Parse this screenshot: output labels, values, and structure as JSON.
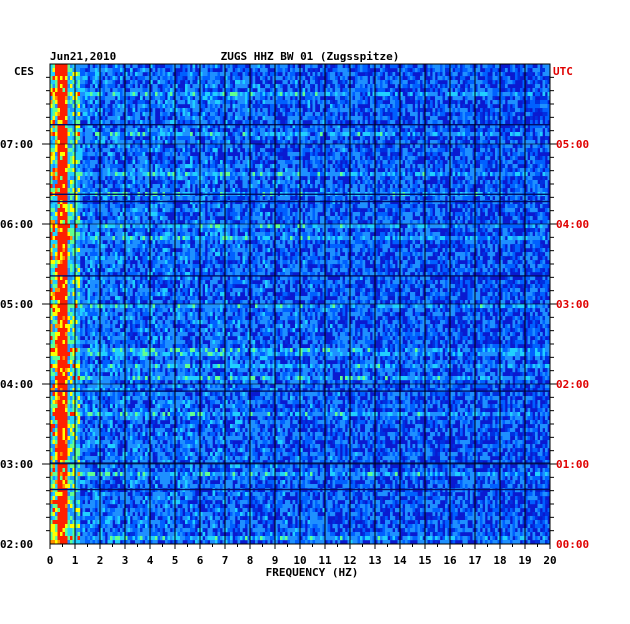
{
  "chart_data": {
    "type": "heatmap",
    "title_left": "Jun21,2010",
    "title_center": "ZUGS HHZ BW 01 (Zugsspitze)",
    "left_zone": "CES",
    "right_zone": "UTC",
    "xlabel": "FREQUENCY (HZ)",
    "xlim": [
      0,
      20
    ],
    "x_ticks": [
      "0",
      "1",
      "2",
      "3",
      "4",
      "5",
      "6",
      "7",
      "8",
      "9",
      "10",
      "11",
      "12",
      "13",
      "14",
      "15",
      "16",
      "17",
      "18",
      "19",
      "20"
    ],
    "y_ticks_left": [
      "02:00",
      "03:00",
      "04:00",
      "05:00",
      "06:00",
      "07:00"
    ],
    "y_ticks_right": [
      "00:00",
      "01:00",
      "02:00",
      "03:00",
      "04:00",
      "05:00"
    ],
    "colors": {
      "background": "#0a1ad0",
      "low": "#0010c0",
      "mid": "#1e90ff",
      "high": "#ffff00",
      "peak": "#ff2000",
      "right_axis_text": "#e00000"
    }
  }
}
